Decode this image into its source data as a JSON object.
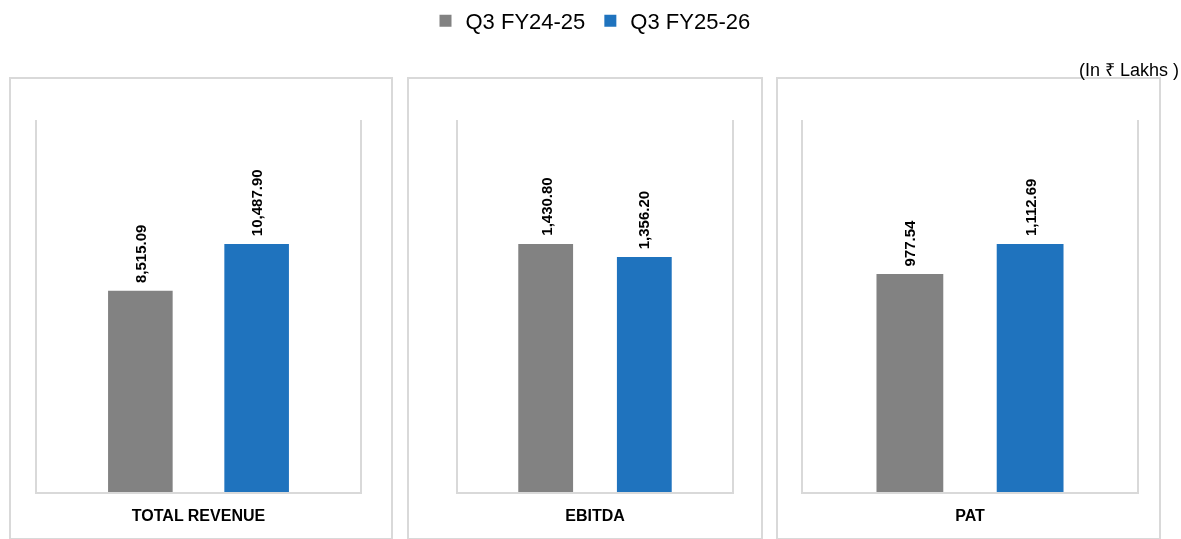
{
  "chart_data": [
    {
      "type": "bar",
      "categories": [
        null
      ],
      "xlabel": "TOTAL REVENUE",
      "legend": "top",
      "series": [
        {
          "name": "Q3 FY24-25",
          "color": "#828282",
          "values": [
            8515.09
          ],
          "value_labels": [
            "8,515.09"
          ]
        },
        {
          "name": "Q3 FY25-26",
          "color": "#1f73be",
          "values": [
            10487.9
          ],
          "value_labels": [
            "10,487.90"
          ]
        }
      ]
    },
    {
      "type": "bar",
      "categories": [
        null
      ],
      "xlabel": "EBITDA",
      "series": [
        {
          "name": "Q3 FY24-25",
          "color": "#828282",
          "values": [
            1430.8
          ],
          "value_labels": [
            "1,430.80"
          ]
        },
        {
          "name": "Q3 FY25-26",
          "color": "#1f73be",
          "values": [
            1356.2
          ],
          "value_labels": [
            "1,356.20"
          ]
        }
      ]
    },
    {
      "type": "bar",
      "categories": [
        null
      ],
      "xlabel": "PAT",
      "annotations": [
        "(In ₹ Lakhs )"
      ],
      "series": [
        {
          "name": "Q3 FY24-25",
          "color": "#828282",
          "values": [
            977.54
          ],
          "value_labels": [
            "977.54"
          ]
        },
        {
          "name": "Q3 FY25-26",
          "color": "#1f73be",
          "values": [
            1112.69
          ],
          "value_labels": [
            "1,112.69"
          ]
        }
      ]
    }
  ]
}
